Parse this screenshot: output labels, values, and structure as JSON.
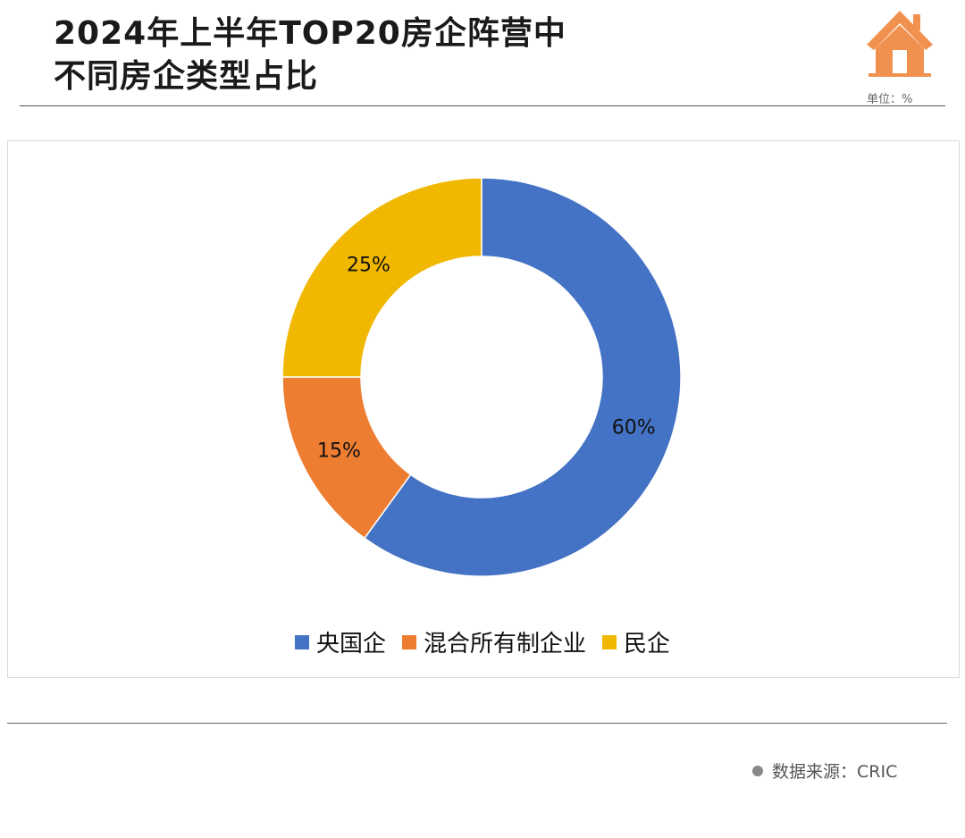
{
  "header": {
    "title_line1": "2024年上半年TOP20房企阵营中",
    "title_line2": "不同房企类型占比",
    "unit": "单位：%",
    "icon": "house-icon"
  },
  "colors": {
    "accent": "#f0914f",
    "series": [
      "#4472c4",
      "#ed7d31",
      "#f0b800"
    ]
  },
  "chart_data": {
    "type": "pie",
    "style": "donut",
    "categories": [
      "央国企",
      "混合所有制企业",
      "民企"
    ],
    "values": [
      60,
      15,
      25
    ],
    "data_labels": [
      "60%",
      "15%",
      "25%"
    ],
    "legend_position": "bottom"
  },
  "footer": {
    "source": "数据来源：CRIC"
  }
}
